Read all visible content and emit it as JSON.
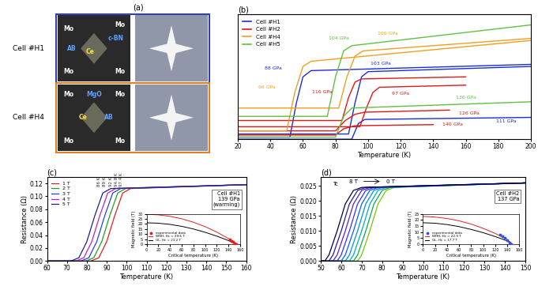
{
  "panel_a": {
    "title": "(a)",
    "rows": [
      {
        "cell": "Cell #H1",
        "color": "#3040c0",
        "labels": [
          {
            "text": "Mo",
            "color": "#ffffff"
          },
          {
            "text": "Mo",
            "color": "#ffffff"
          },
          {
            "text": "c-BN",
            "color": "#60a0ff"
          },
          {
            "text": "AB",
            "color": "#60a0ff"
          },
          {
            "text": "Ce",
            "color": "#ffe040"
          },
          {
            "text": "Mo",
            "color": "#ffffff"
          },
          {
            "text": "Mo",
            "color": "#ffffff"
          }
        ]
      },
      {
        "cell": "Cell #H4",
        "color": "#e08020",
        "labels": [
          {
            "text": "Mo",
            "color": "#ffffff"
          },
          {
            "text": "MgO",
            "color": "#60a0ff"
          },
          {
            "text": "Mo",
            "color": "#ffffff"
          },
          {
            "text": "Ce",
            "color": "#ffe040"
          },
          {
            "text": "AB",
            "color": "#60a0ff"
          },
          {
            "text": "Mo",
            "color": "#ffffff"
          },
          {
            "text": "Mo",
            "color": "#ffffff"
          }
        ]
      }
    ]
  },
  "chart_data": [
    {
      "type": "line",
      "title": "(b)",
      "x_label": "Temperature (K)",
      "xlim": [
        20,
        200
      ],
      "xticks": [
        20,
        40,
        60,
        80,
        100,
        120,
        140,
        160,
        180,
        200
      ],
      "ylim": [
        0,
        1.2
      ],
      "tick_labels": "x",
      "legend": "upper left",
      "series": [
        {
          "name": "Cell #H1",
          "color": "#1a2ee0",
          "curves": [
            {
              "label": "88 GPa",
              "label_x": 42,
              "label_y": 0.68,
              "x": [
                20,
                52,
                56,
                60,
                65,
                200
              ],
              "values": [
                0.02,
                0.02,
                0.35,
                0.6,
                0.66,
                0.72
              ]
            },
            {
              "label": "103 GPa",
              "label_x": 108,
              "label_y": 0.73,
              "x": [
                20,
                88,
                92,
                96,
                100,
                200
              ],
              "values": [
                0.05,
                0.05,
                0.35,
                0.6,
                0.65,
                0.7
              ]
            },
            {
              "label": "111 GPa",
              "label_x": 185,
              "label_y": 0.17,
              "x": [
                20,
                90,
                94,
                98,
                200
              ],
              "values": [
                0,
                0,
                0.15,
                0.19,
                0.21
              ]
            }
          ]
        },
        {
          "name": "Cell #H2",
          "color": "#e01818",
          "curves": [
            {
              "label": "97 GPa",
              "label_x": 120,
              "label_y": 0.44,
              "x": [
                20,
                95,
                99,
                103,
                107,
                160
              ],
              "values": [
                0.12,
                0.12,
                0.3,
                0.45,
                0.5,
                0.52
              ]
            },
            {
              "label": "116 GPa",
              "label_x": 72,
              "label_y": 0.45,
              "x": [
                20,
                84,
                88,
                92,
                96,
                160
              ],
              "values": [
                0.18,
                0.18,
                0.4,
                0.55,
                0.58,
                0.6
              ]
            },
            {
              "label": "126 GPa",
              "label_x": 162,
              "label_y": 0.25,
              "x": [
                20,
                80,
                86,
                92,
                98,
                150
              ],
              "values": [
                0.08,
                0.08,
                0.18,
                0.24,
                0.26,
                0.28
              ]
            },
            {
              "label": "140 GPa",
              "label_x": 152,
              "label_y": 0.14,
              "x": [
                20,
                80,
                85,
                92,
                140
              ],
              "values": [
                0.04,
                0.04,
                0.1,
                0.13,
                0.14
              ]
            }
          ]
        },
        {
          "name": "Cell #H4",
          "color": "#f0a020",
          "curves": [
            {
              "label": "66 GPa",
              "label_x": 38,
              "label_y": 0.5,
              "x": [
                20,
                50,
                55,
                60,
                65,
                200
              ],
              "values": [
                0.08,
                0.08,
                0.45,
                0.7,
                0.75,
                0.95
              ]
            },
            {
              "label": "100 GPa",
              "label_x": 112,
              "label_y": 1.02,
              "x": [
                20,
                82,
                87,
                92,
                97,
                200
              ],
              "values": [
                0.3,
                0.3,
                0.6,
                0.8,
                0.85,
                0.97
              ]
            }
          ]
        },
        {
          "name": "Cell #H5",
          "color": "#60c040",
          "curves": [
            {
              "label": "104 GPa",
              "label_x": 82,
              "label_y": 0.97,
              "x": [
                20,
                75,
                80,
                85,
                90,
                200
              ],
              "values": [
                0.22,
                0.22,
                0.6,
                0.85,
                0.9,
                1.1
              ]
            },
            {
              "label": "136 GPa",
              "label_x": 160,
              "label_y": 0.4,
              "x": [
                20,
                80,
                85,
                90,
                200
              ],
              "values": [
                0.02,
                0.02,
                0.22,
                0.3,
                0.36
              ]
            }
          ]
        }
      ]
    },
    {
      "type": "line",
      "title": "(c)",
      "x_label": "Temperature (K)",
      "y_label": "Resistance (Ω)",
      "xlim": [
        60,
        160
      ],
      "xticks": [
        60,
        70,
        80,
        90,
        100,
        110,
        120,
        130,
        140,
        150,
        160
      ],
      "ylim": [
        0,
        0.13
      ],
      "yticks": [
        {
          "value": 0,
          "label": "0.00"
        },
        {
          "value": 0.02,
          "label": "0.02"
        },
        {
          "value": 0.04,
          "label": "0.04"
        },
        {
          "value": 0.06,
          "label": "0.06"
        },
        {
          "value": 0.08,
          "label": "0.08"
        },
        {
          "value": 0.1,
          "label": "0.10"
        },
        {
          "value": 0.12,
          "label": "0.12"
        }
      ],
      "legend": "upper left",
      "text_box": "Cell #H1\n139 GPa\n(warming)",
      "annotations": [
        {
          "text": "86 K",
          "x": 86,
          "y": 0.115
        },
        {
          "text": "89 K",
          "x": 89,
          "y": 0.115
        },
        {
          "text": "92 K",
          "x": 92,
          "y": 0.115
        },
        {
          "text": "94.8 K",
          "x": 94.8,
          "y": 0.115
        },
        {
          "text": "97.4 K",
          "x": 97.4,
          "y": 0.115
        }
      ],
      "series": [
        {
          "name": "1 T",
          "color": "#e02020",
          "x": [
            60,
            82,
            86,
            90,
            94,
            98,
            102,
            160
          ],
          "values": [
            0,
            0,
            0.005,
            0.03,
            0.07,
            0.105,
            0.112,
            0.118
          ]
        },
        {
          "name": "2 T",
          "color": "#20a020",
          "x": [
            60,
            79.5,
            83.5,
            87.5,
            91.5,
            95.5,
            99.5,
            160
          ],
          "values": [
            0,
            0,
            0.005,
            0.03,
            0.07,
            0.105,
            0.112,
            0.118
          ]
        },
        {
          "name": "3 T",
          "color": "#2040e0",
          "x": [
            60,
            77,
            81,
            85,
            89,
            93,
            97,
            160
          ],
          "values": [
            0,
            0,
            0.005,
            0.03,
            0.07,
            0.105,
            0.112,
            0.118
          ]
        },
        {
          "name": "4 T",
          "color": "#c020c0",
          "x": [
            60,
            74.5,
            78.5,
            82.5,
            86.5,
            90.5,
            94.5,
            160
          ],
          "values": [
            0,
            0,
            0.005,
            0.03,
            0.07,
            0.105,
            0.112,
            0.118
          ]
        },
        {
          "name": "5 T",
          "color": "#202080",
          "x": [
            60,
            72,
            76,
            80,
            84,
            88,
            92,
            160
          ],
          "values": [
            0,
            0,
            0.005,
            0.03,
            0.07,
            0.105,
            0.112,
            0.118
          ]
        }
      ],
      "inset": {
        "type": "line",
        "x_label": "Critical temperature (K)",
        "y_label": "Magnetic field (T)",
        "xlim": [
          0,
          160
        ],
        "xticks": [
          0,
          20,
          40,
          60,
          80,
          100,
          120,
          140,
          160
        ],
        "ylim": [
          0,
          30
        ],
        "yticks": [
          0,
          5,
          10,
          15,
          20,
          25,
          30
        ],
        "legend": "lower left",
        "series": [
          {
            "name": "experimental data",
            "type": "scatter",
            "marker": "circle",
            "color": "#e02020",
            "x": [
              142,
              145,
              148,
              151,
              153
            ],
            "values": [
              4.5,
              3.5,
              2.3,
              1.0,
              0.2
            ]
          },
          {
            "name": "WHH, Hc = 29.6 T",
            "type": "line",
            "color": "#e02020",
            "x": [
              0,
              20,
              40,
              60,
              80,
              100,
              120,
              140,
              154
            ],
            "values": [
              29.6,
              29.1,
              27.6,
              25.2,
              21.8,
              17.4,
              12,
              5.6,
              0
            ]
          },
          {
            "name": "GL, Hc = 21.2 T",
            "type": "line",
            "color": "#000000",
            "x": [
              0,
              20,
              40,
              60,
              80,
              100,
              120,
              140,
              154
            ],
            "values": [
              21.2,
              20.8,
              19.6,
              17.7,
              15.1,
              11.8,
              8,
              3.6,
              0
            ]
          }
        ]
      }
    },
    {
      "type": "line",
      "title": "(d)",
      "x_label": "Temperature (K)",
      "y_label": "Resistance (Ω)",
      "xlim": [
        50,
        150
      ],
      "xticks": [
        50,
        60,
        70,
        80,
        90,
        100,
        110,
        120,
        130,
        140,
        150
      ],
      "ylim": [
        0,
        0.028
      ],
      "yticks": [
        {
          "value": 0,
          "label": "0.000"
        },
        {
          "value": 0.005,
          "label": "0.005"
        },
        {
          "value": 0.01,
          "label": "0.010"
        },
        {
          "value": 0.015,
          "label": "0.015"
        },
        {
          "value": 0.02,
          "label": "0.020"
        },
        {
          "value": 0.025,
          "label": "0.025"
        }
      ],
      "text_box": "Cell #H2\n137 GPa",
      "annotations": [
        {
          "text": "Tc",
          "x": 57,
          "y": 0.0255
        },
        {
          "text": "8 T",
          "x": 66,
          "y": 0.0265
        },
        {
          "text": "0 T",
          "x": 84,
          "y": 0.0265
        }
      ],
      "series": [
        {
          "color": "#80c000",
          "x": [
            50,
            68,
            70,
            74,
            78,
            82,
            86,
            150
          ],
          "values": [
            0,
            0,
            0.002,
            0.01,
            0.019,
            0.0235,
            0.0245,
            0.026
          ]
        },
        {
          "color": "#00b050",
          "x": [
            50,
            66,
            68,
            72,
            76,
            80,
            84,
            150
          ],
          "values": [
            0,
            0,
            0.002,
            0.01,
            0.019,
            0.0235,
            0.0245,
            0.026
          ]
        },
        {
          "color": "#00b0b0",
          "x": [
            50,
            64,
            66,
            70,
            74,
            78,
            82,
            150
          ],
          "values": [
            0,
            0,
            0.002,
            0.01,
            0.019,
            0.0235,
            0.0245,
            0.026
          ]
        },
        {
          "color": "#0090e0",
          "x": [
            50,
            62,
            64,
            68,
            72,
            76,
            80,
            150
          ],
          "values": [
            0,
            0,
            0.002,
            0.01,
            0.019,
            0.0235,
            0.0245,
            0.026
          ]
        },
        {
          "color": "#0060ff",
          "x": [
            50,
            60,
            62,
            66,
            70,
            74,
            78,
            150
          ],
          "values": [
            0,
            0,
            0.002,
            0.01,
            0.019,
            0.0235,
            0.0245,
            0.026
          ]
        },
        {
          "color": "#3030ff",
          "x": [
            50,
            58,
            60,
            64,
            68,
            72,
            76,
            150
          ],
          "values": [
            0,
            0,
            0.002,
            0.01,
            0.019,
            0.0235,
            0.0245,
            0.026
          ]
        },
        {
          "color": "#6020c0",
          "x": [
            50,
            56,
            58,
            62,
            66,
            70,
            74,
            150
          ],
          "values": [
            0,
            0,
            0.002,
            0.01,
            0.019,
            0.0235,
            0.0245,
            0.026
          ]
        },
        {
          "color": "#202090",
          "x": [
            50,
            54,
            56,
            60,
            64,
            68,
            72,
            150
          ],
          "values": [
            0,
            0,
            0.002,
            0.01,
            0.019,
            0.0235,
            0.0245,
            0.026
          ]
        },
        {
          "color": "#000040",
          "x": [
            50,
            52,
            54,
            58,
            62,
            66,
            70,
            150
          ],
          "values": [
            0,
            0,
            0.002,
            0.01,
            0.019,
            0.0235,
            0.0245,
            0.026
          ]
        }
      ],
      "inset": {
        "type": "line",
        "x_label": "Critical temperature (K)",
        "y_label": "Magnetic field (T)",
        "xlim": [
          0,
          160
        ],
        "xticks": [
          0,
          20,
          40,
          60,
          80,
          100,
          120,
          140,
          160
        ],
        "ylim": [
          0,
          25
        ],
        "yticks": [
          0,
          5,
          10,
          15,
          20,
          25
        ],
        "legend": "lower left",
        "series": [
          {
            "name": "experimental data",
            "type": "scatter",
            "marker": "circle",
            "color": "#3050e0",
            "x": [
              128,
              132,
              136,
              140,
              144,
              147
            ],
            "values": [
              8,
              6.5,
              5,
              3,
              1.5,
              0
            ]
          },
          {
            "name": "WHH, Hc = 22.9 T",
            "type": "line",
            "color": "#e02020",
            "x": [
              0,
              20,
              40,
              60,
              80,
              100,
              120,
              140,
              148
            ],
            "values": [
              22.9,
              22.4,
              21.2,
              19.3,
              16.6,
              13.1,
              8.9,
              3.9,
              0
            ]
          },
          {
            "name": "GL, Hc = 17.7 T",
            "type": "line",
            "color": "#000000",
            "x": [
              0,
              20,
              40,
              60,
              80,
              100,
              120,
              140,
              148
            ],
            "values": [
              17.7,
              17.3,
              16.2,
              14.5,
              12.2,
              9.5,
              6.3,
              2.7,
              0
            ]
          }
        ]
      }
    }
  ]
}
